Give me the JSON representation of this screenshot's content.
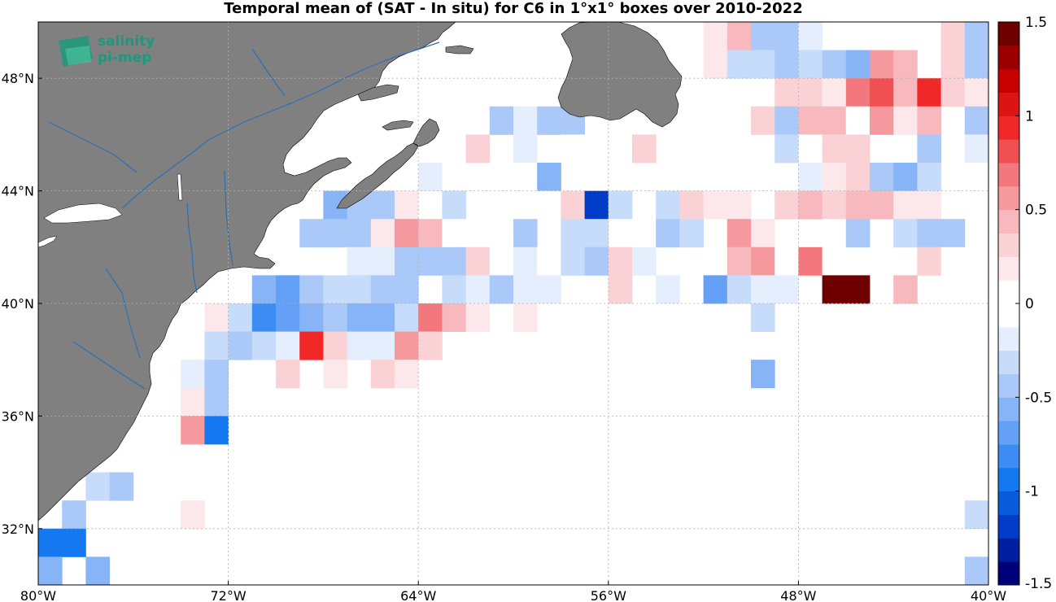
{
  "title": "Temporal mean of (SAT - In situ) for C6 in 1°x1° boxes over 2010-2022",
  "logo": {
    "line1": "salinity",
    "line2": "pi-mep"
  },
  "colors": {
    "land": "#808080",
    "water": "#ffffff",
    "rivers": "#2b6fb6",
    "grid": "#b0b0b0"
  },
  "colorbar": {
    "min": -1.5,
    "max": 1.5,
    "ticks": [
      {
        "value": 1.5,
        "label": "1.5"
      },
      {
        "value": 1,
        "label": "1"
      },
      {
        "value": 0.5,
        "label": "0.5"
      },
      {
        "value": 0,
        "label": "0"
      },
      {
        "value": -0.5,
        "label": "-0.5"
      },
      {
        "value": -1,
        "label": "-1"
      },
      {
        "value": -1.5,
        "label": "-1.5"
      }
    ]
  },
  "chart_data": {
    "type": "heatmap",
    "title": "Temporal mean of (SAT - In situ) for C6 in 1°x1° boxes over 2010-2022",
    "lon_range": [
      -80,
      -40
    ],
    "lat_range": [
      30,
      50
    ],
    "x_ticks": [
      {
        "value": -80,
        "label": "80°W"
      },
      {
        "value": -72,
        "label": "72°W"
      },
      {
        "value": -64,
        "label": "64°W"
      },
      {
        "value": -56,
        "label": "56°W"
      },
      {
        "value": -48,
        "label": "48°W"
      },
      {
        "value": -40,
        "label": "40°W"
      }
    ],
    "y_ticks": [
      {
        "value": 48,
        "label": "48°N"
      },
      {
        "value": 44,
        "label": "44°N"
      },
      {
        "value": 40,
        "label": "40°N"
      },
      {
        "value": 36,
        "label": "36°N"
      },
      {
        "value": 32,
        "label": "32°N"
      }
    ],
    "colorscale": "blue-white-red",
    "value_range": [
      -1.5,
      1.5
    ],
    "cells_lat_lon_value": [
      [
        49,
        -53,
        0.1
      ],
      [
        49,
        -52,
        0.2
      ],
      [
        49,
        -51,
        0.4
      ],
      [
        49,
        -50,
        -0.5
      ],
      [
        49,
        -49,
        -0.4
      ],
      [
        49,
        -48,
        -0.2
      ],
      [
        49,
        -45,
        -0.1
      ],
      [
        49,
        -44,
        0.0
      ],
      [
        49,
        -43,
        0.1
      ],
      [
        49,
        -42,
        0.3
      ],
      [
        49,
        -41,
        -0.4
      ],
      [
        48,
        -53,
        0.1
      ],
      [
        48,
        -52,
        0.2
      ],
      [
        48,
        -51,
        -0.3
      ],
      [
        48,
        -50,
        -0.3
      ],
      [
        48,
        -49,
        -0.4
      ],
      [
        48,
        -48,
        -0.3
      ],
      [
        48,
        -47,
        -0.4
      ],
      [
        48,
        -46,
        -0.6
      ],
      [
        48,
        -45,
        0.6
      ],
      [
        48,
        -44,
        0.4
      ],
      [
        48,
        -42,
        0.3
      ],
      [
        48,
        -41,
        -0.5
      ],
      [
        47,
        -49,
        0.3
      ],
      [
        47,
        -48,
        0.3
      ],
      [
        47,
        -47,
        0.2
      ],
      [
        47,
        -46,
        0.7
      ],
      [
        47,
        -45,
        0.8
      ],
      [
        47,
        -44,
        0.4
      ],
      [
        47,
        -43,
        0.9
      ],
      [
        47,
        -42,
        0.3
      ],
      [
        47,
        -41,
        0.2
      ],
      [
        46,
        -61,
        -0.4
      ],
      [
        46,
        -60,
        -0.2
      ],
      [
        46,
        -59,
        -0.5
      ],
      [
        46,
        -58,
        -0.4
      ],
      [
        46,
        -50,
        0.3
      ],
      [
        46,
        -49,
        -0.4
      ],
      [
        46,
        -48,
        0.4
      ],
      [
        46,
        -47,
        0.4
      ],
      [
        46,
        -46,
        -0.1
      ],
      [
        46,
        -45,
        0.5
      ],
      [
        46,
        -44,
        0.2
      ],
      [
        46,
        -43,
        0.4
      ],
      [
        46,
        -41,
        -0.4
      ],
      [
        45,
        -62,
        0.3
      ],
      [
        45,
        -60,
        -0.2
      ],
      [
        45,
        -58,
        -0.1
      ],
      [
        45,
        -56,
        -0.1
      ],
      [
        45,
        -55,
        0.3
      ],
      [
        45,
        -49,
        -0.3
      ],
      [
        45,
        -48,
        0.1
      ],
      [
        45,
        -47,
        0.3
      ],
      [
        45,
        -46,
        0.3
      ],
      [
        45,
        -43,
        -0.5
      ],
      [
        45,
        -41,
        -0.2
      ],
      [
        44,
        -64,
        -0.2
      ],
      [
        44,
        -63,
        0.1
      ],
      [
        44,
        -61,
        -0.1
      ],
      [
        44,
        -60,
        0.0
      ],
      [
        44,
        -59,
        -0.6
      ],
      [
        44,
        -48,
        -0.2
      ],
      [
        44,
        -47,
        0.2
      ],
      [
        44,
        -46,
        0.3
      ],
      [
        44,
        -45,
        -0.4
      ],
      [
        44,
        -44,
        -0.6
      ],
      [
        44,
        -43,
        -0.3
      ],
      [
        44,
        -41,
        -0.1
      ],
      [
        43,
        -68,
        -0.6
      ],
      [
        43,
        -67,
        -0.5
      ],
      [
        43,
        -66,
        -0.4
      ],
      [
        43,
        -65,
        0.2
      ],
      [
        43,
        -63,
        -0.3
      ],
      [
        43,
        -61,
        0.1
      ],
      [
        43,
        -59,
        -0.1
      ],
      [
        43,
        -58,
        0.3
      ],
      [
        43,
        -57,
        -1.2
      ],
      [
        43,
        -56,
        -0.3
      ],
      [
        43,
        -54,
        -0.3
      ],
      [
        43,
        -53,
        0.3
      ],
      [
        43,
        -52,
        0.2
      ],
      [
        43,
        -51,
        0.2
      ],
      [
        43,
        -49,
        0.3
      ],
      [
        43,
        -48,
        0.4
      ],
      [
        43,
        -47,
        0.3
      ],
      [
        43,
        -46,
        0.4
      ],
      [
        43,
        -45,
        0.4
      ],
      [
        43,
        -44,
        0.2
      ],
      [
        43,
        -43,
        0.2
      ],
      [
        42,
        -69,
        -0.5
      ],
      [
        42,
        -68,
        -0.5
      ],
      [
        42,
        -67,
        -0.4
      ],
      [
        42,
        -66,
        0.2
      ],
      [
        42,
        -65,
        0.6
      ],
      [
        42,
        -64,
        0.4
      ],
      [
        42,
        -63,
        -0.1
      ],
      [
        42,
        -61,
        -0.1
      ],
      [
        42,
        -60,
        -0.4
      ],
      [
        42,
        -58,
        -0.3
      ],
      [
        42,
        -57,
        -0.3
      ],
      [
        42,
        -56,
        0.1
      ],
      [
        42,
        -55,
        -0.1
      ],
      [
        42,
        -54,
        -0.4
      ],
      [
        42,
        -53,
        -0.3
      ],
      [
        42,
        -51,
        0.5
      ],
      [
        42,
        -50,
        0.2
      ],
      [
        42,
        -47,
        -0.1
      ],
      [
        42,
        -46,
        -0.4
      ],
      [
        42,
        -44,
        -0.3
      ],
      [
        42,
        -43,
        -0.4
      ],
      [
        42,
        -42,
        -0.5
      ],
      [
        41,
        -67,
        -0.2
      ],
      [
        41,
        -66,
        -0.2
      ],
      [
        41,
        -65,
        -0.4
      ],
      [
        41,
        -64,
        -0.5
      ],
      [
        41,
        -63,
        -0.5
      ],
      [
        41,
        -62,
        0.3
      ],
      [
        41,
        -61,
        0.1
      ],
      [
        41,
        -60,
        -0.2
      ],
      [
        41,
        -59,
        0.1
      ],
      [
        41,
        -58,
        -0.3
      ],
      [
        41,
        -57,
        -0.4
      ],
      [
        41,
        -56,
        0.3
      ],
      [
        41,
        -55,
        -0.2
      ],
      [
        41,
        -51,
        0.4
      ],
      [
        41,
        -50,
        0.5
      ],
      [
        41,
        -49,
        0.1
      ],
      [
        41,
        -48,
        0.7
      ],
      [
        41,
        -47,
        0.1
      ],
      [
        41,
        -43,
        0.3
      ],
      [
        41,
        -42,
        0.1
      ],
      [
        40,
        -71,
        -0.6
      ],
      [
        40,
        -70,
        -0.7
      ],
      [
        40,
        -69,
        -0.5
      ],
      [
        40,
        -68,
        -0.3
      ],
      [
        40,
        -67,
        -0.3
      ],
      [
        40,
        -66,
        -0.4
      ],
      [
        40,
        -65,
        -0.5
      ],
      [
        40,
        -63,
        -0.3
      ],
      [
        40,
        -62,
        -0.2
      ],
      [
        40,
        -61,
        -0.4
      ],
      [
        40,
        -60,
        -0.2
      ],
      [
        40,
        -59,
        -0.2
      ],
      [
        40,
        -56,
        0.3
      ],
      [
        40,
        -54,
        -0.2
      ],
      [
        40,
        -52,
        -0.7
      ],
      [
        40,
        -51,
        -0.3
      ],
      [
        40,
        -50,
        -0.2
      ],
      [
        40,
        -49,
        -0.2
      ],
      [
        40,
        -47,
        1.5
      ],
      [
        40,
        -46,
        1.5
      ],
      [
        40,
        -44,
        0.4
      ],
      [
        39,
        -73,
        0.2
      ],
      [
        39,
        -72,
        -0.3
      ],
      [
        39,
        -71,
        -0.8
      ],
      [
        39,
        -70,
        -0.7
      ],
      [
        39,
        -69,
        -0.6
      ],
      [
        39,
        -68,
        -0.5
      ],
      [
        39,
        -67,
        -0.6
      ],
      [
        39,
        -66,
        -0.6
      ],
      [
        39,
        -65,
        -0.3
      ],
      [
        39,
        -64,
        0.7
      ],
      [
        39,
        -63,
        0.4
      ],
      [
        39,
        -62,
        0.2
      ],
      [
        39,
        -60,
        0.2
      ],
      [
        39,
        -50,
        -0.3
      ],
      [
        38,
        -73,
        -0.3
      ],
      [
        38,
        -72,
        -0.5
      ],
      [
        38,
        -71,
        -0.3
      ],
      [
        38,
        -70,
        -0.2
      ],
      [
        38,
        -69,
        0.9
      ],
      [
        38,
        -68,
        0.3
      ],
      [
        38,
        -67,
        -0.2
      ],
      [
        38,
        -66,
        -0.2
      ],
      [
        38,
        -65,
        0.5
      ],
      [
        38,
        -64,
        0.3
      ],
      [
        37,
        -74,
        -0.2
      ],
      [
        37,
        -73,
        -0.5
      ],
      [
        37,
        -70,
        0.3
      ],
      [
        37,
        -68,
        0.2
      ],
      [
        37,
        -66,
        0.3
      ],
      [
        37,
        -65,
        0.2
      ],
      [
        37,
        -50,
        -0.6
      ],
      [
        36,
        -74,
        0.2
      ],
      [
        36,
        -73,
        -0.4
      ],
      [
        35,
        -74,
        0.6
      ],
      [
        35,
        -73,
        -0.9
      ],
      [
        34,
        -75,
        -0.1
      ],
      [
        33,
        -78,
        -0.3
      ],
      [
        33,
        -77,
        -0.4
      ],
      [
        32,
        -79,
        -0.5
      ],
      [
        32,
        -75,
        -0.1
      ],
      [
        32,
        -74,
        0.2
      ],
      [
        32,
        -41,
        -0.3
      ],
      [
        31,
        -80,
        -0.9
      ],
      [
        31,
        -79,
        -1.0
      ],
      [
        30,
        -80,
        -0.6
      ],
      [
        30,
        -78,
        -0.6
      ],
      [
        30,
        -41,
        -0.4
      ]
    ]
  }
}
